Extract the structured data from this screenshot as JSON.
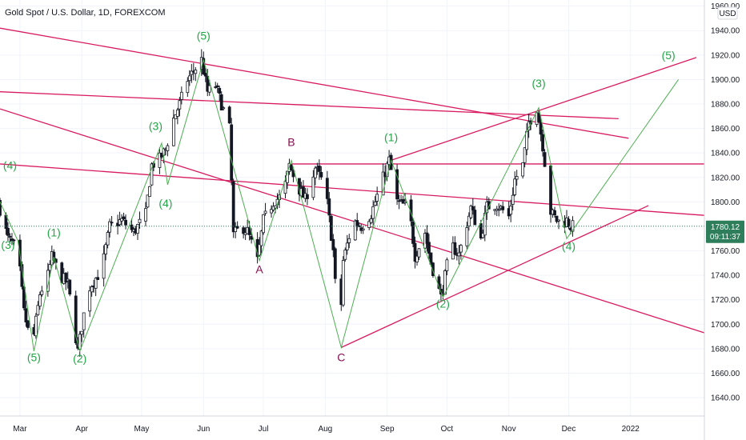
{
  "header": {
    "title": "Gold Spot / U.S. Dollar, 1D, FOREXCOM",
    "currency": "USD"
  },
  "price_marker": {
    "price": "1780.12",
    "countdown": "09:11:37",
    "value": 1780.12
  },
  "colors": {
    "up": "#ffffff",
    "down": "#131722",
    "wick": "#131722",
    "trendline": "#d81b60",
    "wave_line": "#4caf50",
    "green_label": "#22a646",
    "red_label": "#880e4f",
    "price_tag": "#2e7d5b",
    "grid": "#f0f3fa"
  },
  "chart_data": {
    "type": "candlestick",
    "symbol": "Gold Spot / U.S. Dollar",
    "timeframe": "1D",
    "exchange": "FOREXCOM",
    "x_axis": {
      "ticks": [
        "Mar",
        "Apr",
        "May",
        "Jun",
        "Jul",
        "Aug",
        "Sep",
        "Oct",
        "Nov",
        "Dec",
        "2022"
      ]
    },
    "y_axis": {
      "ylim": [
        1625,
        1965
      ],
      "ticks": [
        1640,
        1660,
        1680,
        1700,
        1720,
        1740,
        1760,
        1780,
        1800,
        1820,
        1840,
        1860,
        1880,
        1900,
        1920,
        1940,
        1960
      ],
      "position": "right"
    },
    "price_path": [
      [
        "2021-02-19",
        1800
      ],
      [
        "2021-02-24",
        1770
      ],
      [
        "2021-03-01",
        1760
      ],
      [
        "2021-03-04",
        1710
      ],
      [
        "2021-03-08",
        1680
      ],
      [
        "2021-03-12",
        1725
      ],
      [
        "2021-03-16",
        1740
      ],
      [
        "2021-03-18",
        1755
      ],
      [
        "2021-03-22",
        1740
      ],
      [
        "2021-03-26",
        1733
      ],
      [
        "2021-03-31",
        1678
      ],
      [
        "2021-04-05",
        1728
      ],
      [
        "2021-04-12",
        1745
      ],
      [
        "2021-04-16",
        1780
      ],
      [
        "2021-04-22",
        1785
      ],
      [
        "2021-04-28",
        1775
      ],
      [
        "2021-05-04",
        1790
      ],
      [
        "2021-05-07",
        1830
      ],
      [
        "2021-05-11",
        1835
      ],
      [
        "2021-05-14",
        1843
      ],
      [
        "2021-05-18",
        1868
      ],
      [
        "2021-05-21",
        1880
      ],
      [
        "2021-05-25",
        1900
      ],
      [
        "2021-06-01",
        1916
      ],
      [
        "2021-06-04",
        1890
      ],
      [
        "2021-06-08",
        1895
      ],
      [
        "2021-06-11",
        1880
      ],
      [
        "2021-06-15",
        1860
      ],
      [
        "2021-06-17",
        1773
      ],
      [
        "2021-06-21",
        1780
      ],
      [
        "2021-06-24",
        1776
      ],
      [
        "2021-06-29",
        1752
      ],
      [
        "2021-07-02",
        1785
      ],
      [
        "2021-07-07",
        1800
      ],
      [
        "2021-07-12",
        1806
      ],
      [
        "2021-07-15",
        1830
      ],
      [
        "2021-07-20",
        1810
      ],
      [
        "2021-07-23",
        1802
      ],
      [
        "2021-07-28",
        1828
      ],
      [
        "2021-08-02",
        1812
      ],
      [
        "2021-08-06",
        1760
      ],
      [
        "2021-08-09",
        1681
      ],
      [
        "2021-08-11",
        1752
      ],
      [
        "2021-08-16",
        1785
      ],
      [
        "2021-08-20",
        1780
      ],
      [
        "2021-08-25",
        1790
      ],
      [
        "2021-08-30",
        1815
      ],
      [
        "2021-09-03",
        1834
      ],
      [
        "2021-09-07",
        1800
      ],
      [
        "2021-09-13",
        1795
      ],
      [
        "2021-09-16",
        1756
      ],
      [
        "2021-09-21",
        1775
      ],
      [
        "2021-09-24",
        1750
      ],
      [
        "2021-09-29",
        1722
      ],
      [
        "2021-10-04",
        1765
      ],
      [
        "2021-10-08",
        1757
      ],
      [
        "2021-10-14",
        1795
      ],
      [
        "2021-10-19",
        1770
      ],
      [
        "2021-10-22",
        1796
      ],
      [
        "2021-10-27",
        1798
      ],
      [
        "2021-11-02",
        1788
      ],
      [
        "2021-11-05",
        1818
      ],
      [
        "2021-11-09",
        1830
      ],
      [
        "2021-11-12",
        1865
      ],
      [
        "2021-11-16",
        1877
      ],
      [
        "2021-11-19",
        1846
      ],
      [
        "2021-11-23",
        1792
      ],
      [
        "2021-11-26",
        1785
      ],
      [
        "2021-11-29",
        1782
      ],
      [
        "2021-12-01",
        1785
      ],
      [
        "2021-12-03",
        1780
      ]
    ],
    "wave_labels": [
      {
        "text": "(4)",
        "date": "2021-02-24",
        "price": 1830,
        "color": "green"
      },
      {
        "text": "(3)",
        "date": "2021-02-23",
        "price": 1765,
        "color": "green"
      },
      {
        "text": "(5)",
        "date": "2021-03-08",
        "price": 1673,
        "color": "green"
      },
      {
        "text": "(1)",
        "date": "2021-03-18",
        "price": 1775,
        "color": "green"
      },
      {
        "text": "(2)",
        "date": "2021-03-31",
        "price": 1672,
        "color": "green"
      },
      {
        "text": "(3)",
        "date": "2021-05-08",
        "price": 1862,
        "color": "green"
      },
      {
        "text": "(4)",
        "date": "2021-05-13",
        "price": 1799,
        "color": "green"
      },
      {
        "text": "(5)",
        "date": "2021-06-01",
        "price": 1936,
        "color": "green"
      },
      {
        "text": "A",
        "date": "2021-06-29",
        "price": 1745,
        "color": "red"
      },
      {
        "text": "B",
        "date": "2021-07-15",
        "price": 1849,
        "color": "red"
      },
      {
        "text": "C",
        "date": "2021-08-09",
        "price": 1673,
        "color": "red"
      },
      {
        "text": "(1)",
        "date": "2021-09-03",
        "price": 1853,
        "color": "green"
      },
      {
        "text": "(2)",
        "date": "2021-09-29",
        "price": 1717,
        "color": "green"
      },
      {
        "text": "(3)",
        "date": "2021-11-16",
        "price": 1897,
        "color": "green"
      },
      {
        "text": "(4)",
        "date": "2021-12-01",
        "price": 1764,
        "color": "green"
      },
      {
        "text": "(5)",
        "date": "2022-01-20",
        "price": 1920,
        "color": "green"
      }
    ],
    "wave_path": [
      [
        "2021-02-19",
        1800
      ],
      [
        "2021-02-28",
        1768
      ],
      [
        "2021-03-08",
        1678
      ],
      [
        "2021-03-18",
        1755
      ],
      [
        "2021-03-31",
        1678
      ],
      [
        "2021-05-11",
        1848
      ],
      [
        "2021-05-14",
        1814
      ],
      [
        "2021-06-01",
        1916
      ],
      [
        "2021-06-29",
        1752
      ],
      [
        "2021-07-15",
        1834
      ],
      [
        "2021-08-09",
        1681
      ],
      [
        "2021-09-03",
        1834
      ],
      [
        "2021-09-29",
        1722
      ],
      [
        "2021-11-16",
        1877
      ],
      [
        "2021-11-30",
        1770
      ],
      [
        "2022-01-25",
        1900
      ]
    ],
    "trendlines": [
      {
        "from": [
          "2021-02-19",
          1942
        ],
        "to": [
          "2021-12-31",
          1852
        ]
      },
      {
        "from": [
          "2021-02-19",
          1890
        ],
        "to": [
          "2021-12-26",
          1868
        ]
      },
      {
        "from": [
          "2021-02-19",
          1876
        ],
        "to": [
          "2022-02-07",
          1693
        ]
      },
      {
        "from": [
          "2021-02-19",
          1831
        ],
        "to": [
          "2022-02-07",
          1789
        ]
      },
      {
        "from": [
          "2021-07-15",
          1831
        ],
        "to": [
          "2022-02-07",
          1831
        ]
      },
      {
        "from": [
          "2021-08-09",
          1681
        ],
        "to": [
          "2022-01-10",
          1797
        ]
      },
      {
        "from": [
          "2021-09-03",
          1834
        ],
        "to": [
          "2022-02-03",
          1918
        ]
      }
    ]
  }
}
